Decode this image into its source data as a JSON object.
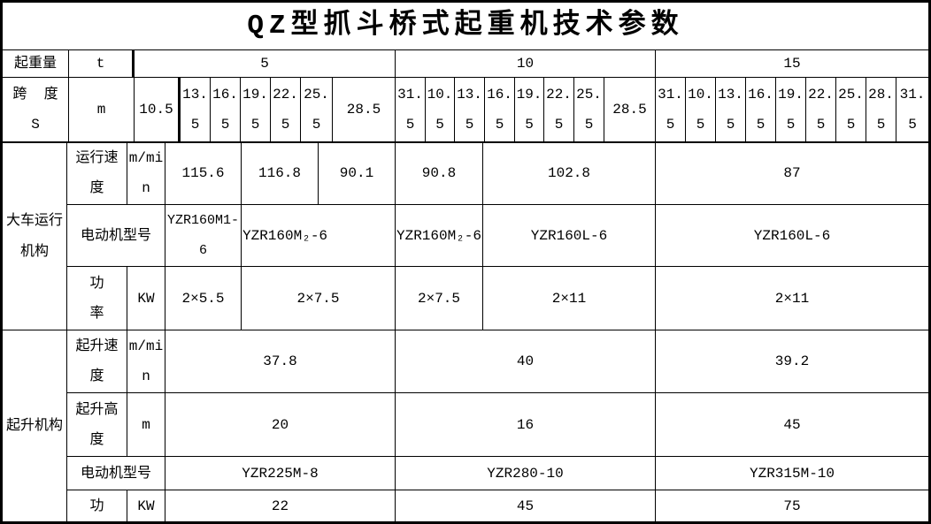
{
  "title": "QZ型抓斗桥式起重机技术参数",
  "colors": {
    "border": "#000000",
    "text": "#000000",
    "background": "#ffffff"
  },
  "capacity_row": {
    "label": "起重量",
    "unit": "t",
    "groups": [
      "5",
      "10",
      "15"
    ]
  },
  "span_row": {
    "label": "跨  度\nS",
    "unit": "m",
    "cells": [
      "10.5",
      "13.\n5",
      "16.\n5",
      "19.\n5",
      "22.\n5",
      "25.\n5",
      "28.5",
      "31.\n5",
      "10.\n5",
      "13.\n5",
      "16.\n5",
      "19.\n5",
      "22.\n5",
      "25.\n5",
      "28.5",
      "31.\n5",
      "10.\n5",
      "13.\n5",
      "16.\n5",
      "19.\n5",
      "22.\n5",
      "25.\n5",
      "28.\n5",
      "31.\n5"
    ]
  },
  "sections": [
    {
      "label": "大车运行\n机构",
      "rows": [
        {
          "label": "运行速\n度",
          "unit": "m/mi\nn",
          "cells": [
            "115.6",
            "116.8",
            "90.1",
            "90.8",
            "102.8",
            "87"
          ]
        },
        {
          "label": "电动机型号",
          "cells": [
            "YZR160M1-\n6",
            "YZR160M₂-6",
            "YZR160M₂-6",
            "YZR160L-6",
            "YZR160L-6"
          ]
        },
        {
          "label": "功\n率",
          "unit": "KW",
          "cells": [
            "2×5.5",
            "2×7.5",
            "2×7.5",
            "2×11",
            "2×11"
          ]
        }
      ]
    },
    {
      "label": "起升机构",
      "rows": [
        {
          "label": "起升速\n度",
          "unit": "m/mi\nn",
          "cells": [
            "37.8",
            "40",
            "39.2"
          ]
        },
        {
          "label": "起升高\n度",
          "unit": "m",
          "cells": [
            "20",
            "16",
            "45"
          ]
        },
        {
          "label": "电动机型号",
          "cells": [
            "YZR225M-8",
            "YZR280-10",
            "YZR315M-10"
          ]
        },
        {
          "label": "功",
          "unit": "KW",
          "cells": [
            "22",
            "45",
            "75"
          ]
        }
      ]
    }
  ]
}
